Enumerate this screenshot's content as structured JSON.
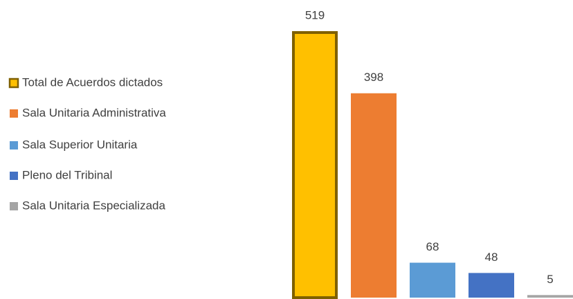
{
  "chart_data": {
    "type": "bar",
    "categories": [
      "Total de Acuerdos dictados",
      "Sala Unitaria Administrativa",
      "Sala Superior Unitaria",
      "Pleno del Tribinal",
      "Sala Unitaria Especializada"
    ],
    "values": [
      519,
      398,
      68,
      48,
      5
    ],
    "colors": [
      "#ffc000",
      "#ed7d31",
      "#5b9bd5",
      "#4472c4",
      "#a5a5a5"
    ],
    "edgecolors": [
      "#7f6000",
      null,
      null,
      null,
      null
    ],
    "legend": "left"
  }
}
